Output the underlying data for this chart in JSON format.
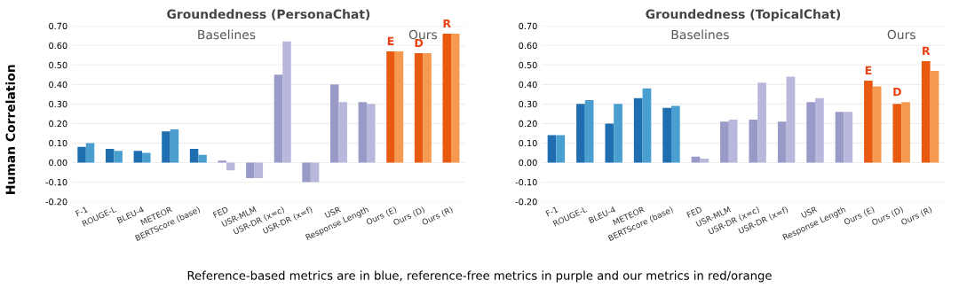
{
  "chart_data": [
    {
      "type": "bar",
      "title": "Groundedness (PersonaChat)",
      "ylabel": "Human Correlation",
      "categories": [
        "F-1",
        "ROUGE-L",
        "BLEU-4",
        "METEOR",
        "BERTScore (base)",
        "FED",
        "USR-MLM",
        "USR-DR (x=c)",
        "USR-DR (x=f)",
        "USR",
        "Response Length",
        "Ours (E)",
        "Ours (D)",
        "Ours (R)"
      ],
      "series": [
        {
          "colors": [
            "#1f6fb0",
            "#1f6fb0",
            "#1f6fb0",
            "#1f6fb0",
            "#1f6fb0",
            "#9a9ac8",
            "#9a9ac8",
            "#9a9ac8",
            "#9a9ac8",
            "#9a9ac8",
            "#9a9ac8",
            "#e85a10",
            "#e85a10",
            "#e85a10"
          ],
          "values": [
            0.08,
            0.07,
            0.06,
            0.16,
            0.07,
            0.01,
            -0.08,
            0.45,
            -0.1,
            0.4,
            0.31,
            0.57,
            0.56,
            0.66
          ]
        },
        {
          "colors": [
            "#4a9fd0",
            "#4a9fd0",
            "#4a9fd0",
            "#4a9fd0",
            "#4a9fd0",
            "#b8b8dc",
            "#b8b8dc",
            "#b8b8dc",
            "#b8b8dc",
            "#b8b8dc",
            "#b8b8dc",
            "#f59a50",
            "#f59a50",
            "#f59a50"
          ],
          "values": [
            0.1,
            0.06,
            0.05,
            0.17,
            0.04,
            -0.04,
            -0.08,
            0.62,
            -0.1,
            0.31,
            0.3,
            0.57,
            0.56,
            0.66
          ]
        }
      ],
      "ylim": [
        -0.2,
        0.7
      ],
      "yticks": [
        {
          "value": -0.2,
          "label": "-0.20"
        },
        {
          "value": -0.1,
          "label": "-0.10"
        },
        {
          "value": 0,
          "label": "0.00"
        },
        {
          "value": 0.1,
          "label": "0.10"
        },
        {
          "value": 0.2,
          "label": "0.20"
        },
        {
          "value": 0.3,
          "label": "0.30"
        },
        {
          "value": 0.4,
          "label": "0.40"
        },
        {
          "value": 0.5,
          "label": "0.50"
        },
        {
          "value": 0.6,
          "label": "0.60"
        },
        {
          "value": 0.7,
          "label": "0.70"
        }
      ],
      "grid": "y",
      "annotations": [
        "Baselines",
        "Ours",
        "E",
        "D",
        "R",
        "Reference-based metrics are in blue, reference-free metrics in purple and our metrics in red/orange"
      ]
    },
    {
      "type": "bar",
      "title": "Groundedness (TopicalChat)",
      "categories": [
        "F-1",
        "ROUGE-L",
        "BLEU-4",
        "METEOR",
        "BERTScore (base)",
        "FED",
        "USR-MLM",
        "USR-DR (x=c)",
        "USR-DR (x=f)",
        "USR",
        "Response Length",
        "Ours (E)",
        "Ours (D)",
        "Ours (R)"
      ],
      "series": [
        {
          "colors": [
            "#1f6fb0",
            "#1f6fb0",
            "#1f6fb0",
            "#1f6fb0",
            "#1f6fb0",
            "#9a9ac8",
            "#9a9ac8",
            "#9a9ac8",
            "#9a9ac8",
            "#9a9ac8",
            "#9a9ac8",
            "#e85a10",
            "#e85a10",
            "#e85a10"
          ],
          "values": [
            0.14,
            0.3,
            0.2,
            0.33,
            0.28,
            0.03,
            0.21,
            0.22,
            0.21,
            0.31,
            0.26,
            0.42,
            0.3,
            0.52
          ]
        },
        {
          "colors": [
            "#4a9fd0",
            "#4a9fd0",
            "#4a9fd0",
            "#4a9fd0",
            "#4a9fd0",
            "#b8b8dc",
            "#b8b8dc",
            "#b8b8dc",
            "#b8b8dc",
            "#b8b8dc",
            "#b8b8dc",
            "#f59a50",
            "#f59a50",
            "#f59a50"
          ],
          "values": [
            0.14,
            0.32,
            0.3,
            0.38,
            0.29,
            0.02,
            0.22,
            0.41,
            0.44,
            0.33,
            0.26,
            0.39,
            0.31,
            0.47
          ]
        }
      ],
      "ylim": [
        -0.2,
        0.7
      ],
      "yticks": [
        {
          "value": -0.2,
          "label": "-0.20"
        },
        {
          "value": -0.1,
          "label": "-0.10"
        },
        {
          "value": 0,
          "label": "0.00"
        },
        {
          "value": 0.1,
          "label": "0.10"
        },
        {
          "value": 0.2,
          "label": "0.20"
        },
        {
          "value": 0.3,
          "label": "0.30"
        },
        {
          "value": 0.4,
          "label": "0.40"
        },
        {
          "value": 0.5,
          "label": "0.50"
        },
        {
          "value": 0.6,
          "label": "0.60"
        },
        {
          "value": 0.7,
          "label": "0.70"
        }
      ],
      "grid": "y",
      "annotations": [
        "Baselines",
        "Ours",
        "E",
        "D",
        "R"
      ]
    }
  ]
}
